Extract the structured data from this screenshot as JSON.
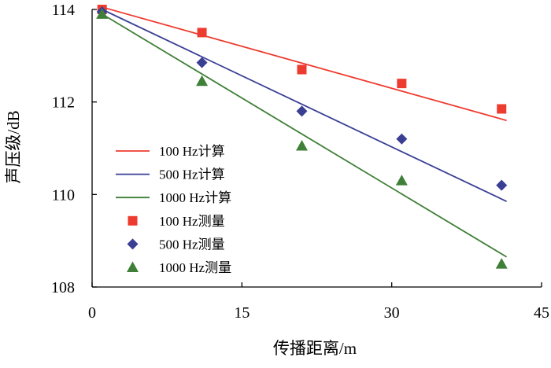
{
  "chart_data": {
    "type": "scatter",
    "xlabel": "传播距离/m",
    "ylabel": "声压级/dB",
    "xlim": [
      0,
      45
    ],
    "ylim": [
      108,
      114
    ],
    "xticks": [
      "0",
      "15",
      "30",
      "45"
    ],
    "yticks": [
      "108",
      "110",
      "112",
      "114"
    ],
    "grid": false,
    "legend_position": "bottom-left",
    "series": [
      {
        "name": "100 Hz计算",
        "kind": "line",
        "color": "#ee3b2f",
        "x": [
          1,
          41.5
        ],
        "y": [
          114.05,
          111.6
        ]
      },
      {
        "name": "500 Hz计算",
        "kind": "line",
        "color": "#3a3f94",
        "x": [
          1,
          41.5
        ],
        "y": [
          114.0,
          109.85
        ]
      },
      {
        "name": "1000 Hz计算",
        "kind": "line",
        "color": "#3f7f37",
        "x": [
          1,
          41.5
        ],
        "y": [
          113.9,
          108.65
        ]
      },
      {
        "name": "100 Hz测量",
        "kind": "points",
        "marker": "square",
        "color": "#ee3b2f",
        "x": [
          1,
          11,
          21,
          31,
          41
        ],
        "y": [
          114.0,
          113.5,
          112.7,
          112.4,
          111.85
        ]
      },
      {
        "name": "500 Hz测量",
        "kind": "points",
        "marker": "diamond",
        "color": "#3a3f94",
        "x": [
          1,
          11,
          21,
          31,
          41
        ],
        "y": [
          113.95,
          112.85,
          111.8,
          111.2,
          110.2
        ]
      },
      {
        "name": "1000 Hz测量",
        "kind": "points",
        "marker": "triangle",
        "color": "#3f7f37",
        "x": [
          1,
          11,
          21,
          31,
          41
        ],
        "y": [
          113.9,
          112.45,
          111.05,
          110.3,
          108.5
        ]
      }
    ]
  }
}
